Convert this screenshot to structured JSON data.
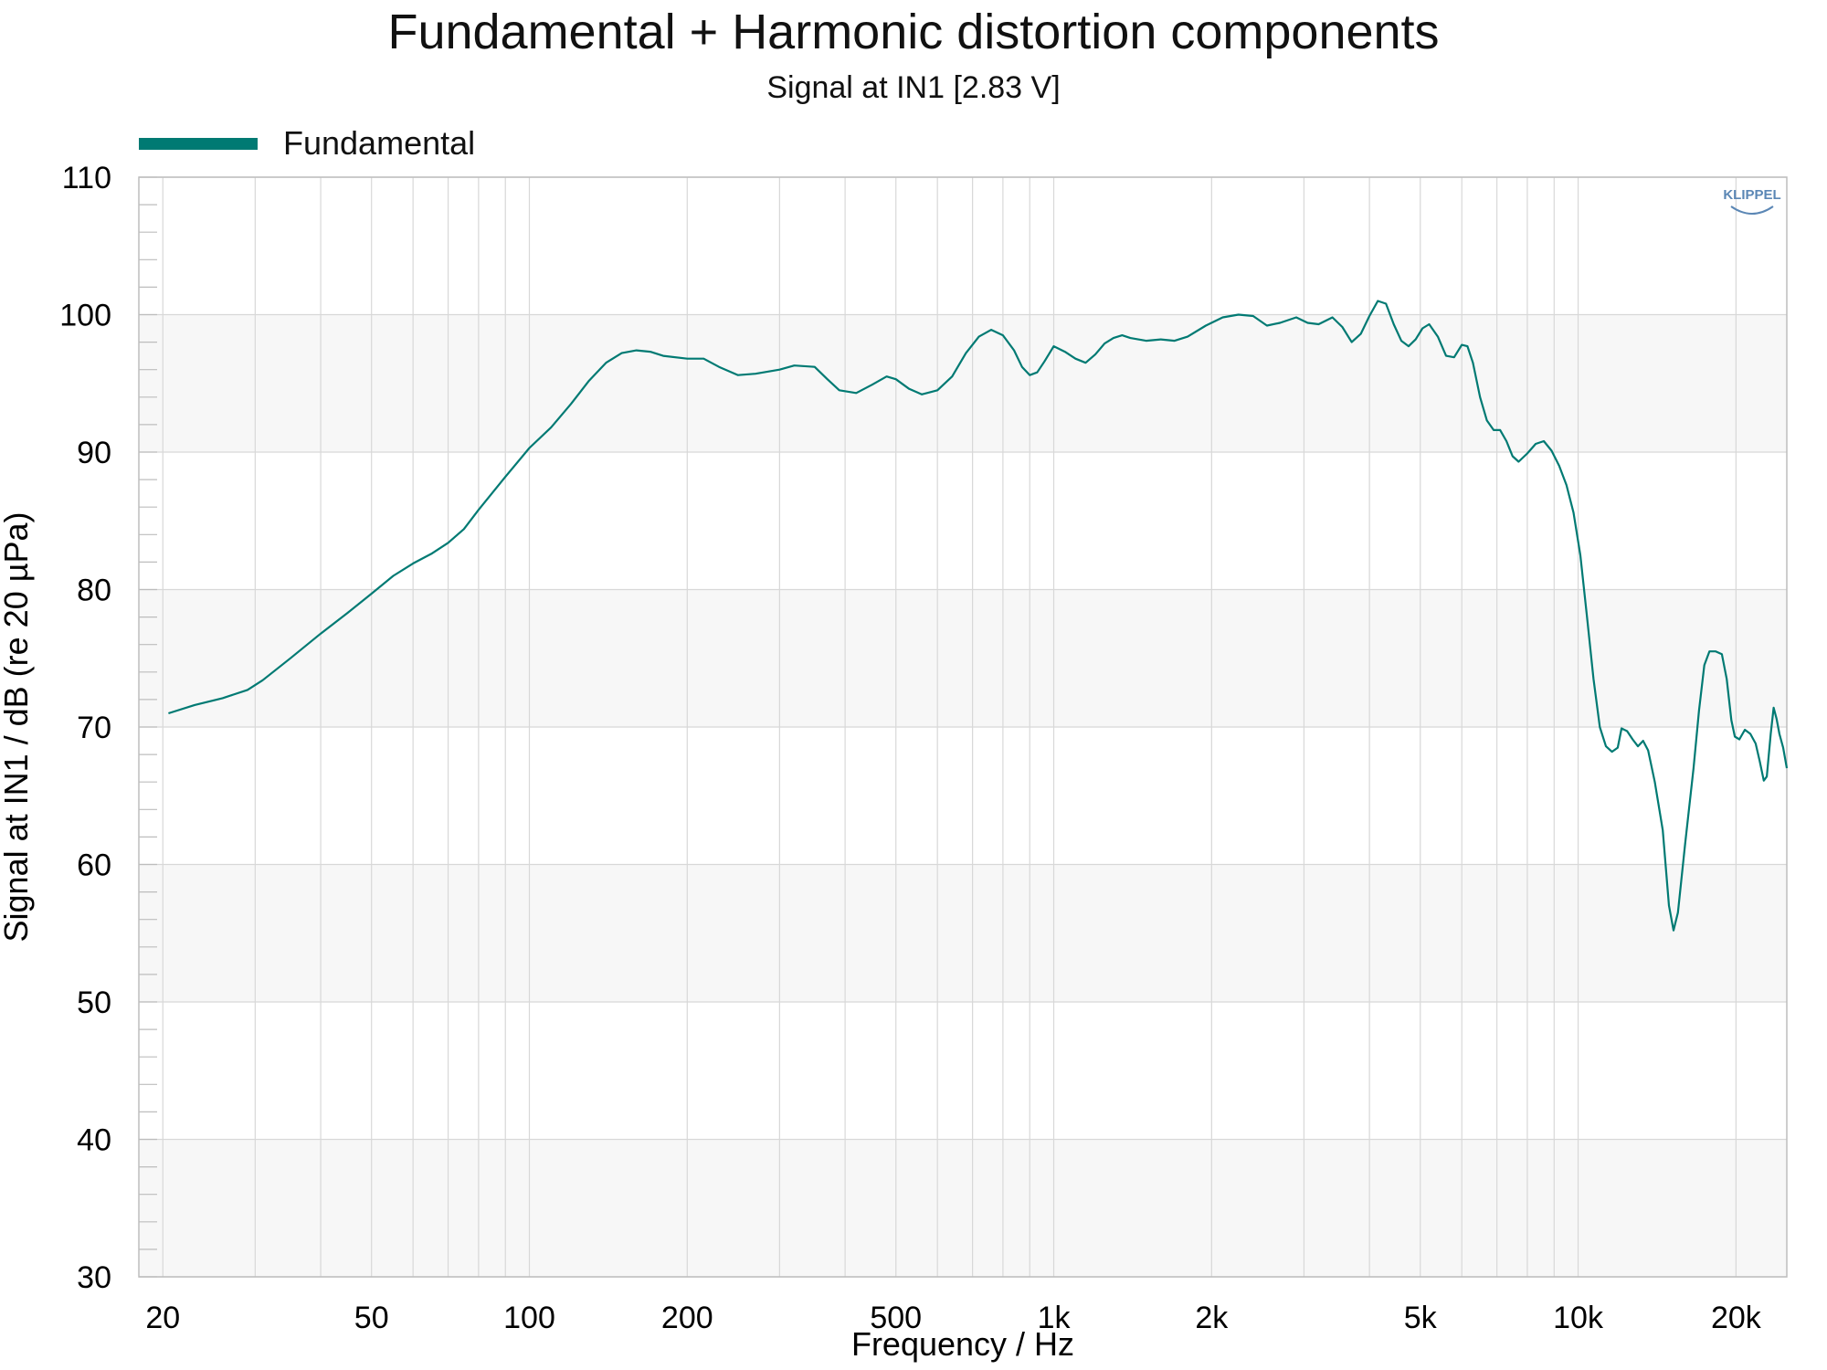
{
  "title": "Fundamental + Harmonic distortion components",
  "subtitle": "Signal at IN1 [2.83 V]",
  "logo_text": "KLIPPEL",
  "colors": {
    "series": "#007a73",
    "band": "#f7f7f7",
    "grid": "#d8d8d8",
    "axis": "#bdbdbd",
    "logo": "#5b87b5"
  },
  "chart_data": {
    "type": "line",
    "title": "Fundamental + Harmonic distortion components",
    "subtitle": "Signal at IN1 [2.83 V]",
    "xlabel": "Frequency / Hz",
    "ylabel": "Signal at IN1 / dB (re 20 µPa)",
    "xscale": "log",
    "xlim": [
      18,
      25000
    ],
    "ylim": [
      30,
      110
    ],
    "grid": true,
    "legend_position": "top-left",
    "x_ticks": [
      {
        "value": 20,
        "label": "20"
      },
      {
        "value": 50,
        "label": "50"
      },
      {
        "value": 100,
        "label": "100"
      },
      {
        "value": 200,
        "label": "200"
      },
      {
        "value": 500,
        "label": "500"
      },
      {
        "value": 1000,
        "label": "1k"
      },
      {
        "value": 2000,
        "label": "2k"
      },
      {
        "value": 5000,
        "label": "5k"
      },
      {
        "value": 10000,
        "label": "10k"
      },
      {
        "value": 20000,
        "label": "20k"
      }
    ],
    "y_ticks": [
      30,
      40,
      50,
      60,
      70,
      80,
      90,
      100,
      110
    ],
    "series": [
      {
        "name": "Fundamental",
        "color": "#007a73",
        "points": [
          [
            20.5,
            71.0
          ],
          [
            23,
            71.6
          ],
          [
            26,
            72.1
          ],
          [
            29,
            72.7
          ],
          [
            31,
            73.4
          ],
          [
            35,
            75.0
          ],
          [
            40,
            76.8
          ],
          [
            45,
            78.3
          ],
          [
            50,
            79.7
          ],
          [
            55,
            81.0
          ],
          [
            60,
            81.9
          ],
          [
            65,
            82.6
          ],
          [
            70,
            83.4
          ],
          [
            75,
            84.4
          ],
          [
            80,
            85.8
          ],
          [
            90,
            88.2
          ],
          [
            100,
            90.3
          ],
          [
            110,
            91.8
          ],
          [
            120,
            93.5
          ],
          [
            130,
            95.2
          ],
          [
            140,
            96.5
          ],
          [
            150,
            97.2
          ],
          [
            160,
            97.4
          ],
          [
            170,
            97.3
          ],
          [
            180,
            97.0
          ],
          [
            200,
            96.8
          ],
          [
            215,
            96.8
          ],
          [
            230,
            96.2
          ],
          [
            250,
            95.6
          ],
          [
            270,
            95.7
          ],
          [
            300,
            96.0
          ],
          [
            320,
            96.3
          ],
          [
            350,
            96.2
          ],
          [
            370,
            95.3
          ],
          [
            390,
            94.5
          ],
          [
            420,
            94.3
          ],
          [
            450,
            94.9
          ],
          [
            480,
            95.5
          ],
          [
            500,
            95.3
          ],
          [
            530,
            94.6
          ],
          [
            560,
            94.2
          ],
          [
            600,
            94.5
          ],
          [
            640,
            95.5
          ],
          [
            680,
            97.2
          ],
          [
            720,
            98.4
          ],
          [
            760,
            98.9
          ],
          [
            800,
            98.5
          ],
          [
            840,
            97.4
          ],
          [
            870,
            96.2
          ],
          [
            900,
            95.6
          ],
          [
            930,
            95.8
          ],
          [
            960,
            96.6
          ],
          [
            1000,
            97.7
          ],
          [
            1050,
            97.3
          ],
          [
            1100,
            96.8
          ],
          [
            1150,
            96.5
          ],
          [
            1200,
            97.1
          ],
          [
            1250,
            97.9
          ],
          [
            1300,
            98.3
          ],
          [
            1350,
            98.5
          ],
          [
            1400,
            98.3
          ],
          [
            1500,
            98.1
          ],
          [
            1600,
            98.2
          ],
          [
            1700,
            98.1
          ],
          [
            1800,
            98.4
          ],
          [
            1950,
            99.2
          ],
          [
            2100,
            99.8
          ],
          [
            2250,
            100.0
          ],
          [
            2400,
            99.9
          ],
          [
            2550,
            99.2
          ],
          [
            2700,
            99.4
          ],
          [
            2900,
            99.8
          ],
          [
            3050,
            99.4
          ],
          [
            3200,
            99.3
          ],
          [
            3400,
            99.8
          ],
          [
            3550,
            99.1
          ],
          [
            3700,
            98.0
          ],
          [
            3850,
            98.6
          ],
          [
            4000,
            99.9
          ],
          [
            4150,
            101.0
          ],
          [
            4300,
            100.8
          ],
          [
            4450,
            99.3
          ],
          [
            4600,
            98.1
          ],
          [
            4750,
            97.7
          ],
          [
            4900,
            98.2
          ],
          [
            5050,
            99.0
          ],
          [
            5200,
            99.3
          ],
          [
            5400,
            98.4
          ],
          [
            5600,
            97.0
          ],
          [
            5800,
            96.9
          ],
          [
            6000,
            97.8
          ],
          [
            6150,
            97.7
          ],
          [
            6300,
            96.5
          ],
          [
            6500,
            94.0
          ],
          [
            6700,
            92.3
          ],
          [
            6900,
            91.6
          ],
          [
            7100,
            91.6
          ],
          [
            7300,
            90.8
          ],
          [
            7500,
            89.7
          ],
          [
            7700,
            89.3
          ],
          [
            8000,
            89.9
          ],
          [
            8300,
            90.6
          ],
          [
            8600,
            90.8
          ],
          [
            8900,
            90.1
          ],
          [
            9200,
            89.0
          ],
          [
            9500,
            87.6
          ],
          [
            9800,
            85.6
          ],
          [
            10100,
            82.5
          ],
          [
            10400,
            78.0
          ],
          [
            10700,
            73.5
          ],
          [
            11000,
            70.0
          ],
          [
            11300,
            68.6
          ],
          [
            11600,
            68.2
          ],
          [
            11900,
            68.5
          ],
          [
            12100,
            69.9
          ],
          [
            12400,
            69.7
          ],
          [
            12700,
            69.1
          ],
          [
            13000,
            68.6
          ],
          [
            13300,
            69.0
          ],
          [
            13600,
            68.3
          ],
          [
            14000,
            66.0
          ],
          [
            14500,
            62.5
          ],
          [
            14900,
            57.0
          ],
          [
            15200,
            55.2
          ],
          [
            15500,
            56.5
          ],
          [
            16000,
            61.5
          ],
          [
            16600,
            67.0
          ],
          [
            17000,
            71.2
          ],
          [
            17400,
            74.5
          ],
          [
            17800,
            75.5
          ],
          [
            18300,
            75.5
          ],
          [
            18800,
            75.3
          ],
          [
            19200,
            73.5
          ],
          [
            19600,
            70.5
          ],
          [
            19900,
            69.3
          ],
          [
            20300,
            69.1
          ],
          [
            20800,
            69.8
          ],
          [
            21300,
            69.5
          ],
          [
            21800,
            68.8
          ],
          [
            22200,
            67.5
          ],
          [
            22600,
            66.1
          ],
          [
            22900,
            66.4
          ],
          [
            23300,
            69.5
          ],
          [
            23600,
            71.4
          ],
          [
            23900,
            70.6
          ],
          [
            24200,
            69.5
          ],
          [
            24600,
            68.5
          ],
          [
            25000,
            67.0
          ]
        ]
      }
    ]
  }
}
